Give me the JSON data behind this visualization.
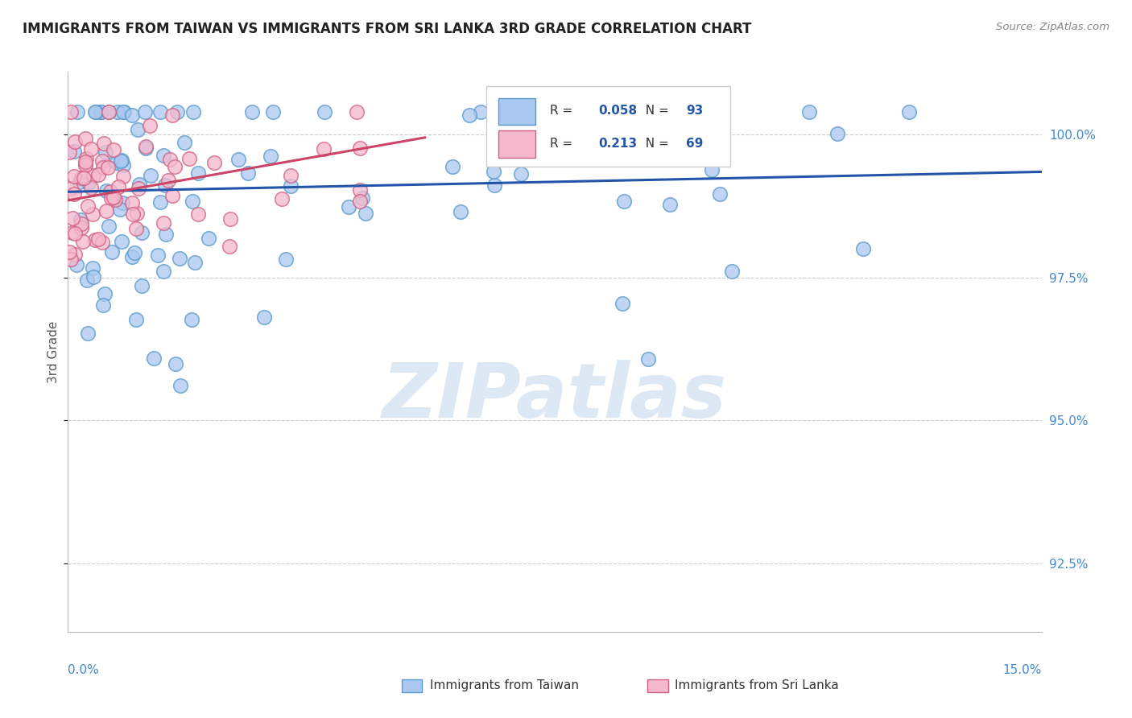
{
  "title": "IMMIGRANTS FROM TAIWAN VS IMMIGRANTS FROM SRI LANKA 3RD GRADE CORRELATION CHART",
  "source": "Source: ZipAtlas.com",
  "ylabel": "3rd Grade",
  "ytick_values": [
    92.5,
    95.0,
    97.5,
    100.0
  ],
  "xmin": 0.0,
  "xmax": 15.0,
  "ymin": 91.3,
  "ymax": 101.1,
  "taiwan_color": "#aac8f0",
  "taiwan_edge_color": "#5599cc",
  "srilanka_color": "#f5b8cc",
  "srilanka_edge_color": "#d06080",
  "taiwan_line_color": "#2255aa",
  "srilanka_line_color": "#cc4466",
  "legend_R_taiwan": "0.058",
  "legend_N_taiwan": "93",
  "legend_R_srilanka": "0.213",
  "legend_N_srilanka": "69",
  "grid_color": "#cccccc",
  "watermark_color": "#dde8f5",
  "taiwan_line_y0": 99.0,
  "taiwan_line_y1": 99.35,
  "srilanka_line_x0": 0.0,
  "srilanka_line_x1": 5.5,
  "srilanka_line_y0": 98.85,
  "srilanka_line_y1": 99.95
}
